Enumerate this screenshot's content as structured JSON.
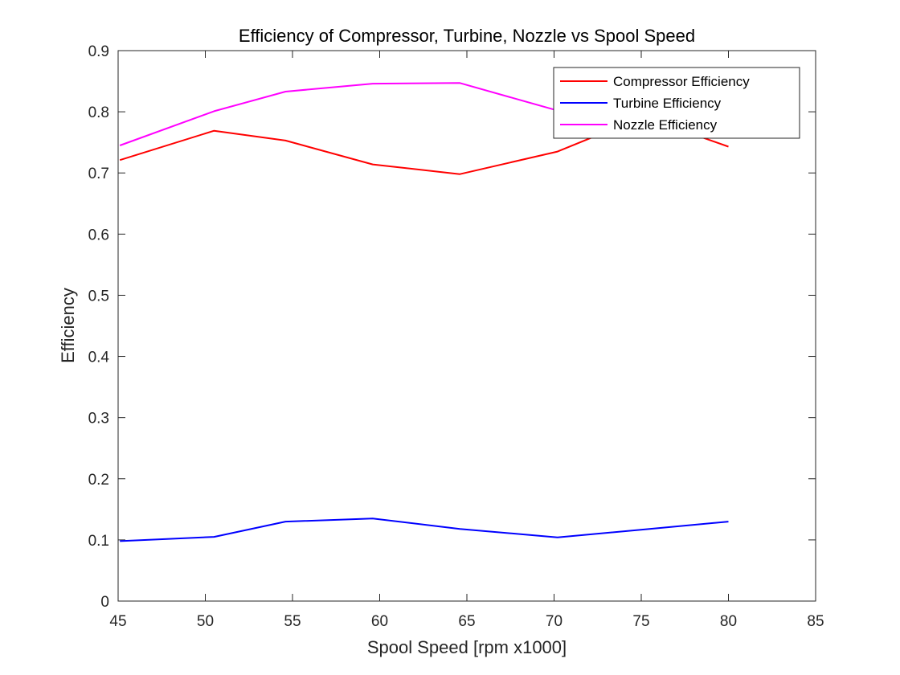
{
  "chart_data": {
    "type": "line",
    "title": "Efficiency of Compressor, Turbine, Nozzle vs Spool Speed",
    "xlabel": "Spool Speed [rpm x1000]",
    "ylabel": "Efficiency",
    "xlim": [
      45,
      85
    ],
    "ylim": [
      0,
      0.9
    ],
    "xticks": [
      45,
      50,
      55,
      60,
      65,
      70,
      75,
      80,
      85
    ],
    "xtick_labels": [
      "45",
      "50",
      "55",
      "60",
      "65",
      "70",
      "75",
      "80",
      "85"
    ],
    "yticks": [
      0,
      0.1,
      0.2,
      0.3,
      0.4,
      0.5,
      0.6,
      0.7,
      0.8,
      0.9
    ],
    "ytick_labels": [
      "0",
      "0.1",
      "0.2",
      "0.3",
      "0.4",
      "0.5",
      "0.6",
      "0.7",
      "0.8",
      "0.9"
    ],
    "grid": false,
    "legend_position": "top-right",
    "series": [
      {
        "name": "Compressor Efficiency",
        "color": "#ff0000",
        "x": [
          45.1,
          50.5,
          54.6,
          59.6,
          64.6,
          70.2,
          75.1,
          80.0
        ],
        "y": [
          0.721,
          0.769,
          0.753,
          0.714,
          0.698,
          0.735,
          0.792,
          0.743
        ]
      },
      {
        "name": "Turbine Efficiency",
        "color": "#0000ff",
        "x": [
          45.1,
          50.5,
          54.6,
          59.6,
          64.6,
          70.2,
          75.1,
          80.0
        ],
        "y": [
          0.098,
          0.105,
          0.13,
          0.135,
          0.118,
          0.104,
          0.117,
          0.13
        ]
      },
      {
        "name": "Nozzle Efficiency",
        "color": "#ff00ff",
        "x": [
          45.1,
          50.5,
          54.6,
          59.6,
          64.6,
          70.2,
          75.1,
          80.0
        ],
        "y": [
          0.745,
          0.801,
          0.833,
          0.846,
          0.847,
          0.802,
          0.79,
          0.772
        ]
      }
    ]
  }
}
